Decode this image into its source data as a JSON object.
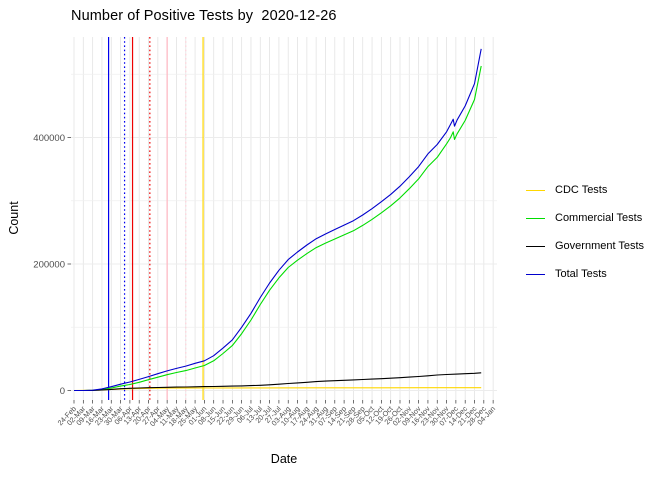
{
  "title": "Number of Positive Tests by  2020-12-26",
  "chart_data": {
    "type": "line",
    "title": "Number of Positive Tests by  2020-12-26",
    "xlabel": "Date",
    "ylabel": "Count",
    "legend_position": "right",
    "grid": true,
    "ylim": [
      0,
      558000
    ],
    "y_major_ticks": [
      0,
      200000,
      400000
    ],
    "y_tick_labels": [
      "0",
      "200000",
      "400000"
    ],
    "y_minor_gridlines": [
      100000,
      300000,
      500000
    ],
    "x_start_date": "2020-02-24",
    "x_tick_interval_days": 7,
    "x_tick_labels": [
      "24-Feb",
      "02-Mar",
      "09-Mar",
      "16-Mar",
      "23-Mar",
      "30-Mar",
      "06-Apr",
      "13-Apr",
      "20-Apr",
      "27-Apr",
      "04-May",
      "11-May",
      "18-May",
      "25-May",
      "01-Jun",
      "08-Jun",
      "15-Jun",
      "22-Jun",
      "29-Jun",
      "06-Jul",
      "13-Jul",
      "20-Jul",
      "27-Jul",
      "03-Aug",
      "10-Aug",
      "17-Aug",
      "24-Aug",
      "31-Aug",
      "07-Sep",
      "14-Sep",
      "21-Sep",
      "28-Sep",
      "05-Oct",
      "12-Oct",
      "19-Oct",
      "26-Oct",
      "02-Nov",
      "09-Nov",
      "16-Nov",
      "23-Nov",
      "30-Nov",
      "07-Dec",
      "14-Dec",
      "21-Dec",
      "28-Dec",
      "04-Jan"
    ],
    "series": [
      {
        "name": "CDC Tests",
        "color": "#FFD700",
        "points": [
          [
            0,
            0
          ],
          [
            14,
            500
          ],
          [
            28,
            1800
          ],
          [
            42,
            2800
          ],
          [
            56,
            3400
          ],
          [
            70,
            3800
          ],
          [
            98,
            4000
          ],
          [
            140,
            4100
          ],
          [
            182,
            4200
          ],
          [
            224,
            4300
          ],
          [
            266,
            4400
          ],
          [
            306,
            4500
          ]
        ]
      },
      {
        "name": "Commercial Tests",
        "color": "#00DD00",
        "points": [
          [
            0,
            0
          ],
          [
            7,
            0
          ],
          [
            14,
            300
          ],
          [
            21,
            1500
          ],
          [
            28,
            4000
          ],
          [
            35,
            7000
          ],
          [
            42,
            9500
          ],
          [
            49,
            13000
          ],
          [
            56,
            17000
          ],
          [
            63,
            21000
          ],
          [
            70,
            25000
          ],
          [
            77,
            28500
          ],
          [
            84,
            31500
          ],
          [
            91,
            35500
          ],
          [
            98,
            39500
          ],
          [
            105,
            47000
          ],
          [
            112,
            58500
          ],
          [
            119,
            71000
          ],
          [
            126,
            90000
          ],
          [
            133,
            111500
          ],
          [
            140,
            136000
          ],
          [
            147,
            158500
          ],
          [
            154,
            178000
          ],
          [
            161,
            194500
          ],
          [
            168,
            206000
          ],
          [
            175,
            216500
          ],
          [
            182,
            226000
          ],
          [
            189,
            233000
          ],
          [
            196,
            239500
          ],
          [
            203,
            246000
          ],
          [
            210,
            252500
          ],
          [
            217,
            261000
          ],
          [
            224,
            270500
          ],
          [
            231,
            281000
          ],
          [
            238,
            292000
          ],
          [
            245,
            304500
          ],
          [
            252,
            319000
          ],
          [
            259,
            334500
          ],
          [
            266,
            354000
          ],
          [
            273,
            368500
          ],
          [
            280,
            390000
          ],
          [
            283,
            400000
          ],
          [
            285,
            409000
          ],
          [
            286,
            397000
          ],
          [
            288,
            406000
          ],
          [
            294,
            427000
          ],
          [
            301,
            460000
          ],
          [
            306,
            513000
          ]
        ]
      },
      {
        "name": "Government Tests",
        "color": "#000000",
        "points": [
          [
            0,
            0
          ],
          [
            7,
            0
          ],
          [
            14,
            200
          ],
          [
            21,
            800
          ],
          [
            28,
            1800
          ],
          [
            35,
            2800
          ],
          [
            42,
            3500
          ],
          [
            49,
            4000
          ],
          [
            56,
            4400
          ],
          [
            63,
            4800
          ],
          [
            70,
            5100
          ],
          [
            77,
            5400
          ],
          [
            84,
            5600
          ],
          [
            91,
            5900
          ],
          [
            98,
            6100
          ],
          [
            105,
            6400
          ],
          [
            112,
            6700
          ],
          [
            119,
            7000
          ],
          [
            126,
            7300
          ],
          [
            133,
            7700
          ],
          [
            140,
            8200
          ],
          [
            147,
            9000
          ],
          [
            154,
            10000
          ],
          [
            161,
            11000
          ],
          [
            168,
            12000
          ],
          [
            175,
            13000
          ],
          [
            182,
            14000
          ],
          [
            189,
            14800
          ],
          [
            196,
            15500
          ],
          [
            203,
            16200
          ],
          [
            210,
            16800
          ],
          [
            217,
            17400
          ],
          [
            224,
            18000
          ],
          [
            231,
            18700
          ],
          [
            238,
            19500
          ],
          [
            245,
            20300
          ],
          [
            252,
            21200
          ],
          [
            259,
            22200
          ],
          [
            266,
            23300
          ],
          [
            273,
            24500
          ],
          [
            280,
            25300
          ],
          [
            288,
            26000
          ],
          [
            294,
            26600
          ],
          [
            301,
            27200
          ],
          [
            306,
            28000
          ]
        ]
      },
      {
        "name": "Total Tests",
        "color": "#0000CC",
        "points": [
          [
            0,
            0
          ],
          [
            7,
            0
          ],
          [
            14,
            500
          ],
          [
            21,
            2500
          ],
          [
            28,
            6000
          ],
          [
            35,
            10000
          ],
          [
            42,
            13500
          ],
          [
            49,
            17500
          ],
          [
            56,
            22000
          ],
          [
            63,
            26500
          ],
          [
            70,
            31000
          ],
          [
            77,
            35000
          ],
          [
            84,
            38500
          ],
          [
            91,
            43000
          ],
          [
            98,
            47000
          ],
          [
            105,
            55000
          ],
          [
            112,
            67000
          ],
          [
            119,
            80000
          ],
          [
            126,
            100000
          ],
          [
            133,
            122000
          ],
          [
            140,
            147000
          ],
          [
            147,
            170000
          ],
          [
            154,
            190000
          ],
          [
            161,
            207000
          ],
          [
            168,
            219000
          ],
          [
            175,
            230000
          ],
          [
            182,
            240000
          ],
          [
            189,
            247500
          ],
          [
            196,
            254500
          ],
          [
            203,
            261500
          ],
          [
            210,
            268500
          ],
          [
            217,
            277500
          ],
          [
            224,
            287500
          ],
          [
            231,
            298500
          ],
          [
            238,
            310000
          ],
          [
            245,
            323000
          ],
          [
            252,
            338000
          ],
          [
            259,
            354000
          ],
          [
            266,
            374000
          ],
          [
            273,
            389000
          ],
          [
            280,
            409000
          ],
          [
            283,
            421000
          ],
          [
            285,
            429000
          ],
          [
            286,
            418000
          ],
          [
            288,
            428000
          ],
          [
            294,
            450000
          ],
          [
            301,
            485000
          ],
          [
            306,
            540000
          ]
        ]
      }
    ],
    "vlines": [
      {
        "color": "#0000EE",
        "style": "solid",
        "day": 26,
        "approx_date": "2020-03-21"
      },
      {
        "color": "#0000EE",
        "style": "dotted",
        "day": 38,
        "approx_date": "2020-04-02"
      },
      {
        "color": "#EE0000",
        "style": "solid",
        "day": 44,
        "approx_date": "2020-04-08"
      },
      {
        "color": "#EE0000",
        "style": "dotted",
        "day": 57,
        "approx_date": "2020-04-21"
      },
      {
        "color": "#FFB6C1",
        "style": "solid",
        "day": 70,
        "approx_date": "2020-05-04"
      },
      {
        "color": "#FFD1DA",
        "style": "dotted",
        "day": 84,
        "approx_date": "2020-05-18"
      },
      {
        "color": "#FFD700",
        "style": "solid",
        "day": 97,
        "approx_date": "2020-06-01"
      }
    ],
    "colors": {
      "tick_label": "#4d4d4d",
      "gridline": "#E3E3E3",
      "gridline_minor": "#EFEFEF",
      "tick_mark": "#333333"
    }
  }
}
